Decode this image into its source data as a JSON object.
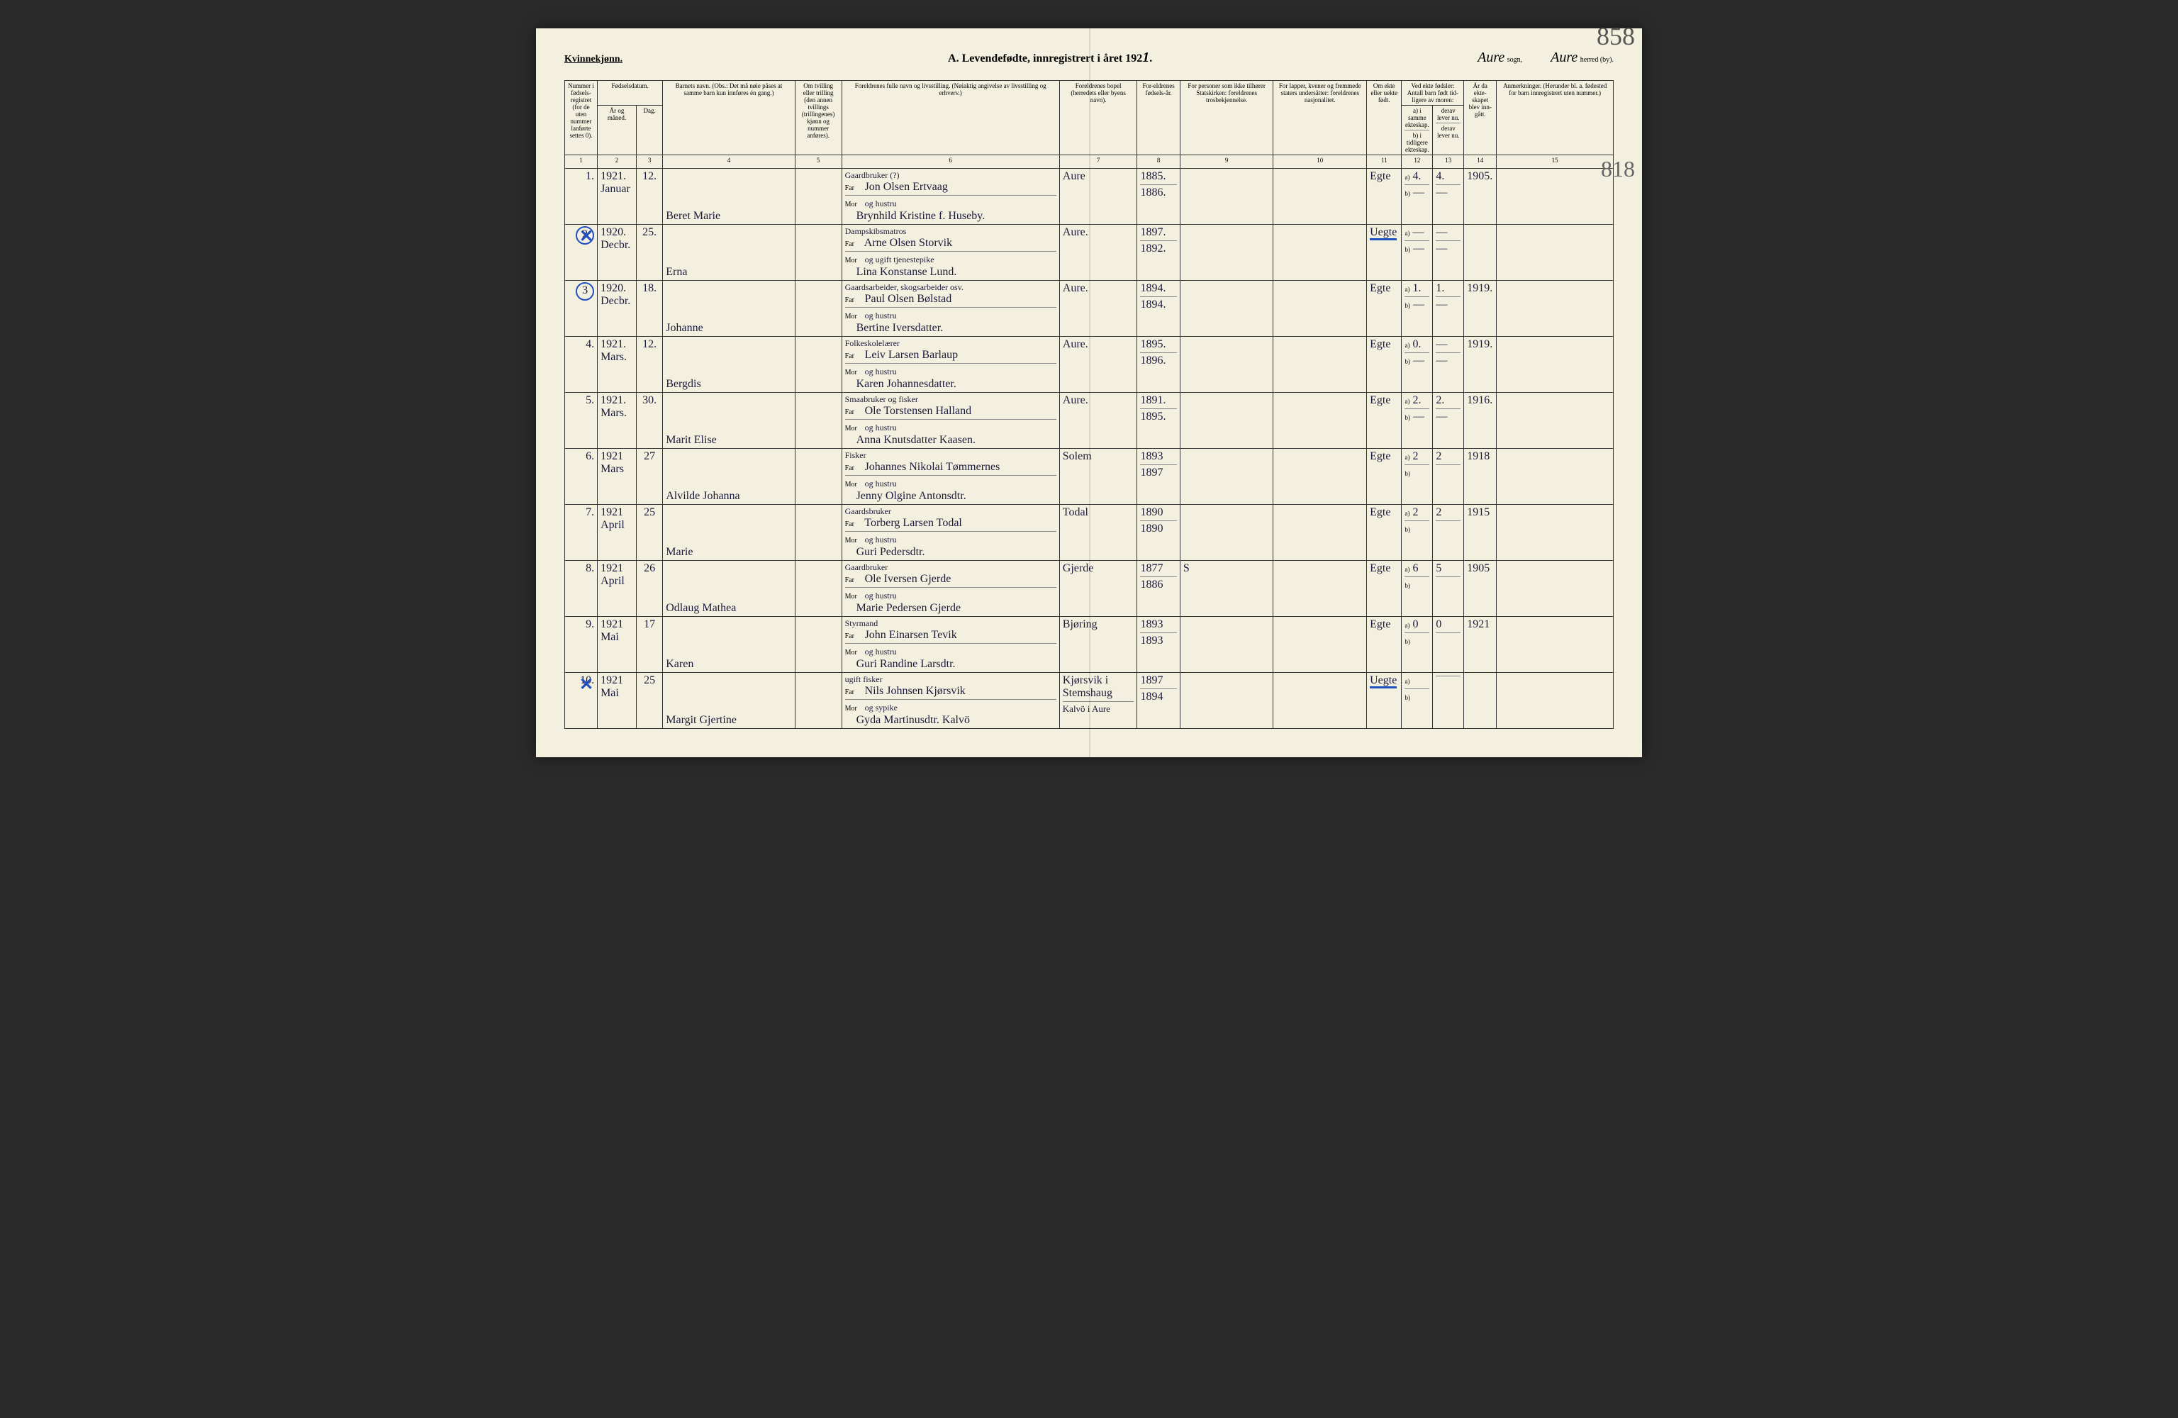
{
  "header": {
    "gender": "Kvinnekjønn.",
    "title_prefix": "A. Levendefødte, innregistrert i året 192",
    "year_suffix": "1",
    "sogn_label": "sogn,",
    "sogn_value": "Aure",
    "herred_label": "herred (by).",
    "herred_value": "Aure",
    "page_number": "858",
    "side_note": "818"
  },
  "columns": {
    "c1": "Nummer i fødsels-registret (for de uten nummer lanførte settes 0).",
    "c2a": "Fødselsdatum.",
    "c2": "År og måned.",
    "c3": "Dag.",
    "c4": "Barnets navn.\n(Obs.: Det må nøie påses at samme barn kun innføres én gang.)",
    "c5": "Om tvilling eller trilling (den annen tvillings (trillingenes) kjønn og nummer anføres).",
    "c6": "Foreldrenes fulle navn og livsstilling.\n(Nøiaktig angivelse av livsstilling og erhverv.)",
    "c7": "Foreldrenes bopel (herredets eller byens navn).",
    "c8": "For-eldrenes fødsels-år.",
    "c9": "For personer som ikke tilhører Statskirken: foreldrenes trosbekjennelse.",
    "c10": "For lapper, kvener og fremmede staters undersåtter: foreldrenes nasjonalitet.",
    "c11": "Om ekte eller uekte født.",
    "c12": "Ved ekte fødsler: Antall barn født tid-ligere av moren:",
    "c12a": "a) i samme ekteskap.",
    "c12b": "b) i tidligere ekteskap.",
    "c13": "derav lever nu.",
    "c13b": "derav lever nu.",
    "c14": "År da ekte-skapet blev inn-gått.",
    "c15": "Anmerkninger.\n(Herunder bl. a. fødested for barn innregistrert uten nummer.)"
  },
  "colnums": [
    "1",
    "2",
    "3",
    "4",
    "5",
    "6",
    "7",
    "8",
    "9",
    "10",
    "11",
    "12",
    "13",
    "14",
    "15"
  ],
  "rows": [
    {
      "num": "1",
      "circled": false,
      "x": false,
      "year": "1921.",
      "month": "Januar",
      "day": "12.",
      "name": "Beret Marie",
      "twin": "",
      "far_occ": "Gaardbruker (?)",
      "far": "Jon Olsen Ertvaag",
      "mor_rel": "og hustru",
      "mor": "Brynhild Kristine f. Huseby.",
      "bopel": "Aure",
      "faar": "1885.",
      "maar": "1886.",
      "c9": "",
      "c10": "",
      "ekte": "Egte",
      "a": "4.",
      "a2": "4.",
      "b": "—",
      "b2": "—",
      "c14": "1905.",
      "c15": ""
    },
    {
      "num": "2",
      "circled": true,
      "x": true,
      "year": "1920.",
      "month": "Decbr.",
      "day": "25.",
      "name": "Erna",
      "twin": "",
      "far_occ": "Dampskibsmatros",
      "far": "Arne Olsen Storvik",
      "mor_rel": "og ugift tjenestepike",
      "mor": "Lina Konstanse Lund.",
      "bopel": "Aure.",
      "faar": "1897.",
      "maar": "1892.",
      "c9": "",
      "c10": "",
      "ekte": "Uegte",
      "ekte_blue": true,
      "a": "—",
      "a2": "—",
      "b": "—",
      "b2": "—",
      "c14": "",
      "c15": ""
    },
    {
      "num": "3",
      "circled": true,
      "x": false,
      "year": "1920.",
      "month": "Decbr.",
      "day": "18.",
      "name": "Johanne",
      "twin": "",
      "far_occ": "Gaardsarbeider, skogsarbeider osv.",
      "far": "Paul Olsen Bølstad",
      "mor_rel": "og hustru",
      "mor": "Bertine Iversdatter.",
      "bopel": "Aure.",
      "faar": "1894.",
      "maar": "1894.",
      "c9": "",
      "c10": "",
      "ekte": "Egte",
      "a": "1.",
      "a2": "1.",
      "b": "—",
      "b2": "—",
      "c14": "1919.",
      "c15": ""
    },
    {
      "num": "4",
      "circled": false,
      "x": false,
      "year": "1921.",
      "month": "Mars.",
      "day": "12.",
      "name": "Bergdis",
      "twin": "",
      "far_occ": "Folkeskolelærer",
      "far": "Leiv Larsen Barlaup",
      "mor_rel": "og hustru",
      "mor": "Karen Johannesdatter.",
      "bopel": "Aure.",
      "faar": "1895.",
      "maar": "1896.",
      "c9": "",
      "c10": "",
      "ekte": "Egte",
      "a": "0.",
      "a2": "—",
      "b": "—",
      "b2": "—",
      "c14": "1919.",
      "c15": ""
    },
    {
      "num": "5",
      "circled": false,
      "x": false,
      "year": "1921.",
      "month": "Mars.",
      "day": "30.",
      "name": "Marit Elise",
      "twin": "",
      "far_occ": "Smaabruker og fisker",
      "far": "Ole Torstensen Halland",
      "mor_rel": "og hustru",
      "mor": "Anna Knutsdatter Kaasen.",
      "bopel": "Aure.",
      "faar": "1891.",
      "maar": "1895.",
      "c9": "",
      "c10": "",
      "ekte": "Egte",
      "a": "2.",
      "a2": "2.",
      "b": "—",
      "b2": "—",
      "c14": "1916.",
      "c15": ""
    },
    {
      "num": "6",
      "circled": false,
      "x": false,
      "year": "1921",
      "month": "Mars",
      "day": "27",
      "name": "Alvilde Johanna",
      "twin": "",
      "far_occ": "Fisker",
      "far": "Johannes Nikolai Tømmernes",
      "mor_rel": "og hustru",
      "mor": "Jenny Olgine Antonsdtr.",
      "bopel": "Solem",
      "faar": "1893",
      "maar": "1897",
      "c9": "",
      "c10": "",
      "ekte": "Egte",
      "a": "2",
      "a2": "2",
      "b": "",
      "b2": "",
      "c14": "1918",
      "c15": ""
    },
    {
      "num": "7",
      "circled": false,
      "x": false,
      "year": "1921",
      "month": "April",
      "day": "25",
      "name": "Marie",
      "twin": "",
      "far_occ": "Gaardsbruker",
      "far": "Torberg Larsen Todal",
      "mor_rel": "og hustru",
      "mor": "Guri Pedersdtr.",
      "bopel": "Todal",
      "faar": "1890",
      "maar": "1890",
      "c9": "",
      "c10": "",
      "ekte": "Egte",
      "a": "2",
      "a2": "2",
      "b": "",
      "b2": "",
      "c14": "1915",
      "c15": ""
    },
    {
      "num": "8",
      "circled": false,
      "x": false,
      "year": "1921",
      "month": "April",
      "day": "26",
      "name": "Odlaug Mathea",
      "twin": "",
      "far_occ": "Gaardbruker",
      "far": "Ole Iversen Gjerde",
      "mor_rel": "og hustru",
      "mor": "Marie Pedersen Gjerde",
      "bopel": "Gjerde",
      "faar": "1877",
      "maar": "1886",
      "c9": "S",
      "c10": "",
      "ekte": "Egte",
      "a": "6",
      "a2": "5",
      "b": "",
      "b2": "",
      "c14": "1905",
      "c15": ""
    },
    {
      "num": "9",
      "circled": false,
      "x": false,
      "year": "1921",
      "month": "Mai",
      "day": "17",
      "name": "Karen",
      "twin": "",
      "far_occ": "Styrmand",
      "far": "John Einarsen Tevik",
      "mor_rel": "og hustru",
      "mor": "Guri Randine Larsdtr.",
      "bopel": "Bjøring",
      "faar": "1893",
      "maar": "1893",
      "c9": "",
      "c10": "",
      "ekte": "Egte",
      "a": "0",
      "a2": "0",
      "b": "",
      "b2": "",
      "c14": "1921",
      "c15": ""
    },
    {
      "num": "10",
      "circled": false,
      "x": true,
      "year": "1921",
      "month": "Mai",
      "day": "25",
      "name": "Margit Gjertine",
      "twin": "",
      "far_occ": "ugift fisker",
      "far": "Nils Johnsen Kjørsvik",
      "mor_rel": "og sypike",
      "mor": "Gyda Martinusdtr. Kalvö",
      "bopel": "Kjørsvik i Stemshaug",
      "faar": "1897",
      "maar": "1894",
      "bopel2": "Kalvö i Aure",
      "c9": "",
      "c10": "",
      "ekte": "Uegte",
      "ekte_blue": true,
      "a": "",
      "a2": "",
      "b": "",
      "b2": "",
      "c14": "",
      "c15": ""
    }
  ]
}
